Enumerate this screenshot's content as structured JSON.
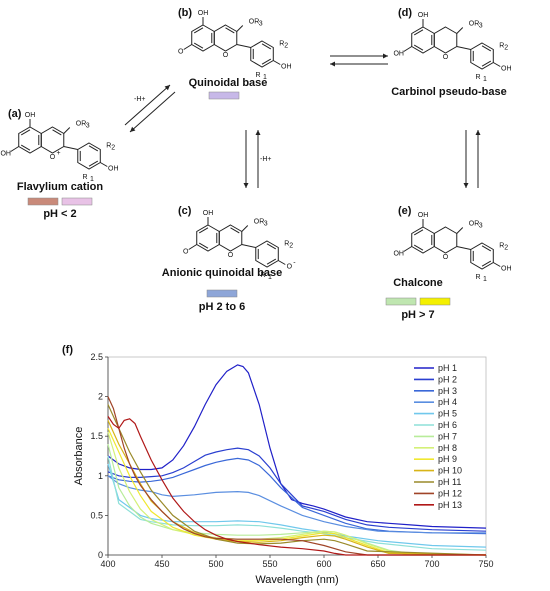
{
  "scheme": {
    "panels": [
      {
        "id": "a",
        "panel_label": "(a)",
        "name": "Flavylium cation",
        "condition": "pH < 2",
        "swatches": [
          "#c98a7a",
          "#e8c2e6"
        ]
      },
      {
        "id": "b",
        "panel_label": "(b)",
        "name": "Quinoidal base",
        "condition": "",
        "swatches": [
          "#c7b8e8"
        ]
      },
      {
        "id": "c",
        "panel_label": "(c)",
        "name": "Anionic quinoidal base",
        "condition": "pH 2 to 6",
        "swatches": [
          "#8ea6d8"
        ]
      },
      {
        "id": "d",
        "panel_label": "(d)",
        "name": "Carbinol pseudo-base",
        "condition": "",
        "swatches": []
      },
      {
        "id": "e",
        "panel_label": "(e)",
        "name": "Chalcone",
        "condition": "pH > 7",
        "swatches": [
          "#bfe6b0",
          "#f4f000"
        ]
      }
    ],
    "arrow_labels": {
      "a_to_b": "-H+",
      "b_to_c": "-H+"
    },
    "atoms": {
      "oh": "OH",
      "or3": "OR",
      "r2": "R",
      "r1": "R",
      "o_ring": "O",
      "o_plus": "O",
      "o_carb": "O",
      "o_minus": "O"
    },
    "subscripts": {
      "s3": "3",
      "s2": "2",
      "s1": "1"
    },
    "charges": {
      "plus": "+",
      "minus": "-"
    }
  },
  "figure_f_label": "(f)",
  "chart_data": {
    "type": "line",
    "xlabel": "Wavelength (nm)",
    "ylabel": "Absorbance",
    "xlim": [
      400,
      750
    ],
    "ylim": [
      0,
      2.5
    ],
    "xticks": [
      400,
      450,
      500,
      550,
      600,
      650,
      700,
      750
    ],
    "yticks": [
      0,
      0.5,
      1,
      1.5,
      2,
      2.5
    ],
    "grid": false,
    "legend_position": "top-right",
    "series": [
      {
        "name": "pH 1",
        "color": "#2020c8",
        "x": [
          400,
          410,
          420,
          430,
          440,
          450,
          460,
          470,
          480,
          490,
          500,
          510,
          520,
          525,
          530,
          540,
          550,
          560,
          570,
          580,
          590,
          600,
          620,
          640,
          660,
          680,
          700,
          750
        ],
        "y": [
          1.25,
          1.15,
          1.1,
          1.08,
          1.08,
          1.1,
          1.2,
          1.38,
          1.62,
          1.9,
          2.15,
          2.32,
          2.4,
          2.38,
          2.3,
          1.9,
          1.35,
          0.9,
          0.7,
          0.65,
          0.62,
          0.58,
          0.48,
          0.42,
          0.4,
          0.38,
          0.36,
          0.34
        ]
      },
      {
        "name": "pH 2",
        "color": "#2a3fd0",
        "x": [
          400,
          410,
          420,
          430,
          440,
          450,
          460,
          470,
          480,
          490,
          500,
          510,
          520,
          530,
          540,
          550,
          560,
          580,
          600,
          620,
          640,
          660,
          700,
          750
        ],
        "y": [
          1.05,
          1.0,
          0.98,
          0.98,
          0.99,
          1.0,
          1.04,
          1.1,
          1.18,
          1.26,
          1.3,
          1.33,
          1.35,
          1.33,
          1.25,
          1.1,
          0.9,
          0.62,
          0.55,
          0.45,
          0.38,
          0.35,
          0.32,
          0.3
        ]
      },
      {
        "name": "pH 3",
        "color": "#3a68d8",
        "x": [
          400,
          410,
          420,
          430,
          440,
          450,
          460,
          470,
          480,
          490,
          500,
          510,
          520,
          530,
          540,
          550,
          560,
          580,
          600,
          620,
          640,
          660,
          700,
          750
        ],
        "y": [
          1.0,
          0.95,
          0.93,
          0.92,
          0.93,
          0.95,
          0.98,
          1.03,
          1.08,
          1.13,
          1.17,
          1.2,
          1.22,
          1.2,
          1.13,
          1.0,
          0.85,
          0.6,
          0.5,
          0.4,
          0.33,
          0.3,
          0.28,
          0.27
        ]
      },
      {
        "name": "pH 4",
        "color": "#5a8ee0",
        "x": [
          400,
          410,
          420,
          430,
          440,
          450,
          460,
          480,
          500,
          520,
          530,
          540,
          560,
          580,
          600,
          620,
          650,
          700,
          750
        ],
        "y": [
          1.0,
          0.9,
          0.85,
          0.82,
          0.8,
          0.76,
          0.74,
          0.76,
          0.79,
          0.8,
          0.79,
          0.75,
          0.62,
          0.5,
          0.42,
          0.36,
          0.3,
          0.28,
          0.28
        ]
      },
      {
        "name": "pH 5",
        "color": "#70c8ec",
        "x": [
          400,
          410,
          420,
          430,
          440,
          460,
          480,
          500,
          520,
          540,
          560,
          580,
          600,
          620,
          650,
          700,
          750
        ],
        "y": [
          1.15,
          0.7,
          0.6,
          0.5,
          0.46,
          0.42,
          0.42,
          0.42,
          0.43,
          0.42,
          0.38,
          0.33,
          0.29,
          0.24,
          0.18,
          0.12,
          0.1
        ]
      },
      {
        "name": "pH 6",
        "color": "#8ee0d8",
        "x": [
          400,
          410,
          420,
          430,
          440,
          460,
          480,
          500,
          520,
          540,
          560,
          580,
          600,
          620,
          650,
          700,
          750
        ],
        "y": [
          1.25,
          0.65,
          0.55,
          0.45,
          0.42,
          0.38,
          0.37,
          0.37,
          0.38,
          0.37,
          0.34,
          0.3,
          0.27,
          0.22,
          0.15,
          0.08,
          0.06
        ]
      },
      {
        "name": "pH 7",
        "color": "#b8ec9a",
        "x": [
          400,
          410,
          420,
          430,
          440,
          460,
          480,
          500,
          520,
          540,
          560,
          580,
          600,
          610,
          620,
          640,
          660,
          680,
          700,
          750
        ],
        "y": [
          1.4,
          0.85,
          0.62,
          0.48,
          0.4,
          0.32,
          0.28,
          0.26,
          0.25,
          0.25,
          0.26,
          0.28,
          0.3,
          0.29,
          0.25,
          0.15,
          0.06,
          0.02,
          0.01,
          0.0
        ]
      },
      {
        "name": "pH 8",
        "color": "#d4f078",
        "x": [
          400,
          410,
          420,
          430,
          440,
          460,
          480,
          500,
          520,
          540,
          560,
          580,
          600,
          610,
          620,
          640,
          660,
          680,
          750
        ],
        "y": [
          1.55,
          1.1,
          0.8,
          0.58,
          0.45,
          0.32,
          0.26,
          0.22,
          0.2,
          0.2,
          0.22,
          0.26,
          0.3,
          0.29,
          0.25,
          0.14,
          0.05,
          0.0,
          0.0
        ]
      },
      {
        "name": "pH 9",
        "color": "#f0e830",
        "x": [
          400,
          410,
          420,
          430,
          440,
          460,
          480,
          500,
          520,
          540,
          560,
          580,
          600,
          610,
          620,
          640,
          660,
          750
        ],
        "y": [
          1.6,
          1.3,
          1.0,
          0.75,
          0.55,
          0.35,
          0.25,
          0.2,
          0.18,
          0.18,
          0.2,
          0.24,
          0.28,
          0.27,
          0.22,
          0.12,
          0.03,
          0.0
        ]
      },
      {
        "name": "pH 10",
        "color": "#d8b418",
        "x": [
          400,
          410,
          420,
          430,
          440,
          460,
          480,
          500,
          520,
          540,
          560,
          580,
          600,
          610,
          620,
          640,
          660,
          750
        ],
        "y": [
          1.7,
          1.4,
          1.15,
          0.9,
          0.68,
          0.42,
          0.28,
          0.2,
          0.17,
          0.16,
          0.18,
          0.22,
          0.25,
          0.24,
          0.2,
          0.1,
          0.02,
          0.0
        ]
      },
      {
        "name": "pH 11",
        "color": "#9a8a2a",
        "x": [
          400,
          410,
          420,
          430,
          440,
          460,
          480,
          500,
          520,
          540,
          560,
          580,
          600,
          610,
          620,
          640,
          750
        ],
        "y": [
          1.9,
          1.6,
          1.3,
          1.05,
          0.82,
          0.5,
          0.3,
          0.2,
          0.15,
          0.14,
          0.15,
          0.18,
          0.2,
          0.18,
          0.14,
          0.05,
          0.0
        ]
      },
      {
        "name": "pH 12",
        "color": "#a04428",
        "x": [
          400,
          405,
          410,
          415,
          420,
          425,
          430,
          440,
          450,
          460,
          470,
          480,
          490,
          500,
          520,
          540,
          560,
          580,
          600,
          620,
          640,
          750
        ],
        "y": [
          2.0,
          1.85,
          1.6,
          1.35,
          1.15,
          1.0,
          0.88,
          0.7,
          0.55,
          0.42,
          0.33,
          0.27,
          0.23,
          0.21,
          0.2,
          0.2,
          0.2,
          0.18,
          0.12,
          0.04,
          0.0,
          0.0
        ]
      },
      {
        "name": "pH 13",
        "color": "#b01818",
        "x": [
          400,
          405,
          410,
          415,
          420,
          425,
          430,
          440,
          450,
          460,
          470,
          480,
          490,
          500,
          510,
          520,
          540,
          560,
          580,
          600,
          610,
          620,
          750
        ],
        "y": [
          1.75,
          1.65,
          1.6,
          1.7,
          1.72,
          1.66,
          1.5,
          1.2,
          0.95,
          0.72,
          0.55,
          0.42,
          0.32,
          0.25,
          0.2,
          0.17,
          0.13,
          0.1,
          0.08,
          0.05,
          0.02,
          0.0,
          0.0
        ]
      }
    ]
  }
}
